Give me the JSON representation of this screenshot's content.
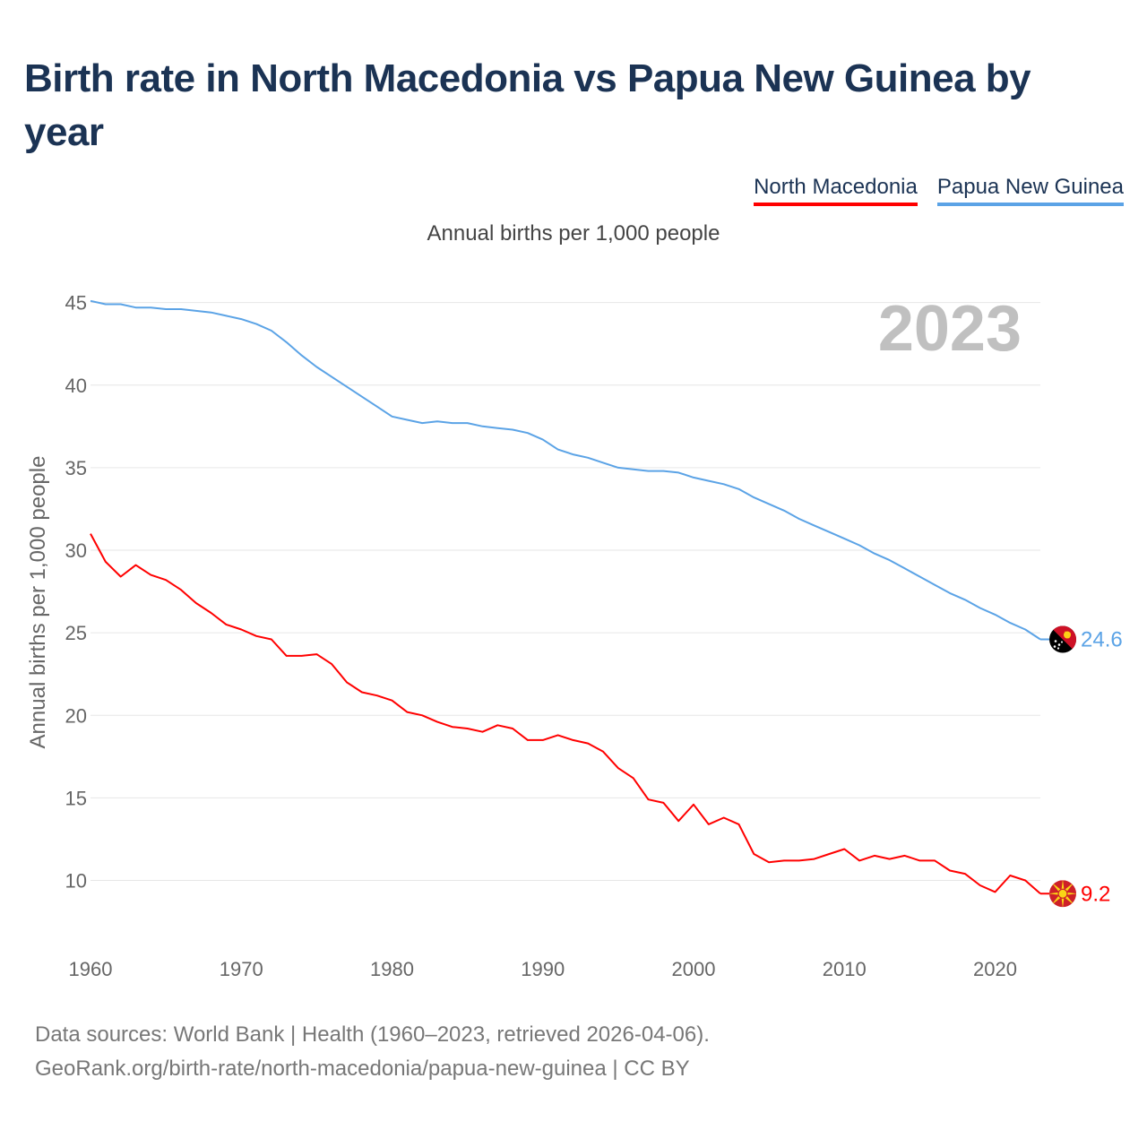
{
  "title": "Birth rate in North Macedonia vs Papua New Guinea by year",
  "legend": {
    "north_macedonia": "North Macedonia",
    "papua_new_guinea": "Papua New Guinea"
  },
  "subtitle": "Annual births per 1,000 people",
  "year_label": "2023",
  "footer": {
    "line1": "Data sources: World Bank | Health (1960–2023, retrieved 2026-04-06).",
    "line2": "GeoRank.org/birth-rate/north-macedonia/papua-new-guinea | CC BY"
  },
  "colors": {
    "title": "#1b3354",
    "north_macedonia": "#ff0000",
    "papua_new_guinea": "#5ba3e6",
    "grid": "#e6e6e6",
    "year": "#c0c0c0"
  },
  "chart_data": {
    "type": "line",
    "title": "Birth rate in North Macedonia vs Papua New Guinea by year",
    "xlabel": "",
    "ylabel": "Annual births per 1,000 people",
    "xlim": [
      1960,
      2023
    ],
    "ylim": [
      6.5,
      46.5
    ],
    "x_ticks": [
      1960,
      1970,
      1980,
      1990,
      2000,
      2010,
      2020
    ],
    "y_ticks": [
      10,
      15,
      20,
      25,
      30,
      35,
      40,
      45
    ],
    "grid": true,
    "legend_position": "top-right",
    "x": [
      1960,
      1961,
      1962,
      1963,
      1964,
      1965,
      1966,
      1967,
      1968,
      1969,
      1970,
      1971,
      1972,
      1973,
      1974,
      1975,
      1976,
      1977,
      1978,
      1979,
      1980,
      1981,
      1982,
      1983,
      1984,
      1985,
      1986,
      1987,
      1988,
      1989,
      1990,
      1991,
      1992,
      1993,
      1994,
      1995,
      1996,
      1997,
      1998,
      1999,
      2000,
      2001,
      2002,
      2003,
      2004,
      2005,
      2006,
      2007,
      2008,
      2009,
      2010,
      2011,
      2012,
      2013,
      2014,
      2015,
      2016,
      2017,
      2018,
      2019,
      2020,
      2021,
      2022,
      2023
    ],
    "series": [
      {
        "name": "North Macedonia",
        "color": "#ff0000",
        "end_label": "9.2",
        "values": [
          31.0,
          29.3,
          28.4,
          29.1,
          28.5,
          28.2,
          27.6,
          26.8,
          26.2,
          25.5,
          25.2,
          24.8,
          24.6,
          23.6,
          23.6,
          23.7,
          23.1,
          22.0,
          21.4,
          21.2,
          20.9,
          20.2,
          20.0,
          19.6,
          19.3,
          19.2,
          19.0,
          19.4,
          19.2,
          18.5,
          18.5,
          18.8,
          18.5,
          18.3,
          17.8,
          16.8,
          16.2,
          14.9,
          14.7,
          13.6,
          14.6,
          13.4,
          13.8,
          13.4,
          11.6,
          11.1,
          11.2,
          11.2,
          11.3,
          11.6,
          11.9,
          11.2,
          11.5,
          11.3,
          11.5,
          11.2,
          11.2,
          10.6,
          10.4,
          9.7,
          9.3,
          10.3,
          10.0,
          9.2
        ]
      },
      {
        "name": "Papua New Guinea",
        "color": "#5ba3e6",
        "end_label": "24.6",
        "values": [
          45.1,
          44.9,
          44.9,
          44.7,
          44.7,
          44.6,
          44.6,
          44.5,
          44.4,
          44.2,
          44.0,
          43.7,
          43.3,
          42.6,
          41.8,
          41.1,
          40.5,
          39.9,
          39.3,
          38.7,
          38.1,
          37.9,
          37.7,
          37.8,
          37.7,
          37.7,
          37.5,
          37.4,
          37.3,
          37.1,
          36.7,
          36.1,
          35.8,
          35.6,
          35.3,
          35.0,
          34.9,
          34.8,
          34.8,
          34.7,
          34.4,
          34.2,
          34.0,
          33.7,
          33.2,
          32.8,
          32.4,
          31.9,
          31.5,
          31.1,
          30.7,
          30.3,
          29.8,
          29.4,
          28.9,
          28.4,
          27.9,
          27.4,
          27.0,
          26.5,
          26.1,
          25.6,
          25.2,
          24.6
        ]
      }
    ]
  }
}
